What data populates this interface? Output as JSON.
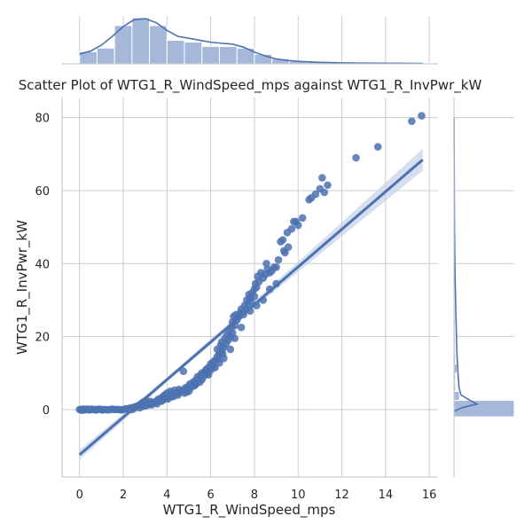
{
  "chart_data": {
    "type": "scatter",
    "title": "Scatter Plot of WTG1_R_WindSpeed_mps against WTG1_R_InvPwr_kW",
    "xlabel": "WTG1_R_WindSpeed_mps",
    "ylabel": "WTG1_R_InvPwr_kW",
    "xlim": [
      -0.8,
      16.4
    ],
    "ylim": [
      -18.5,
      85.5
    ],
    "x_ticks": [
      0,
      2,
      4,
      6,
      8,
      10,
      12,
      14,
      16
    ],
    "y_ticks": [
      0,
      20,
      40,
      60,
      80
    ],
    "grid": true,
    "colors": {
      "points": "#4c72b0",
      "line": "#4c72b0",
      "ci_band": "#c5d1e8",
      "hist_fill": "#a6b8da",
      "grid": "#cccccc",
      "axis": "#cccccc"
    },
    "regression": {
      "slope": 5.15,
      "intercept": -12.4,
      "x_range": [
        0,
        15.7
      ],
      "ci": [
        {
          "x": 0,
          "half_width": 1.3
        },
        {
          "x": 4,
          "half_width": 0.6
        },
        {
          "x": 8,
          "half_width": 0.9
        },
        {
          "x": 12,
          "half_width": 1.9
        },
        {
          "x": 15.7,
          "half_width": 3.0
        }
      ]
    },
    "x_histogram": {
      "bin_edges": [
        0,
        0.8,
        1.6,
        2.4,
        3.2,
        4.0,
        4.8,
        5.6,
        6.4,
        7.2,
        8.0,
        8.8,
        9.6,
        10.4,
        11.2,
        12.0,
        12.8,
        13.6,
        14.4,
        15.2,
        16.0
      ],
      "counts": [
        14,
        18,
        44,
        53,
        44,
        27,
        25,
        20,
        20,
        18,
        11,
        6,
        3,
        2,
        2,
        1,
        1,
        1,
        1,
        1
      ],
      "kde": [
        {
          "x": 0.0,
          "d": 10
        },
        {
          "x": 0.5,
          "d": 13
        },
        {
          "x": 1.0,
          "d": 19
        },
        {
          "x": 1.5,
          "d": 28
        },
        {
          "x": 2.0,
          "d": 38
        },
        {
          "x": 2.5,
          "d": 45
        },
        {
          "x": 3.0,
          "d": 46
        },
        {
          "x": 3.5,
          "d": 42
        },
        {
          "x": 4.0,
          "d": 34
        },
        {
          "x": 4.5,
          "d": 28
        },
        {
          "x": 5.0,
          "d": 26
        },
        {
          "x": 5.5,
          "d": 24
        },
        {
          "x": 6.0,
          "d": 22
        },
        {
          "x": 6.5,
          "d": 21
        },
        {
          "x": 7.0,
          "d": 20
        },
        {
          "x": 7.5,
          "d": 17
        },
        {
          "x": 8.0,
          "d": 12
        },
        {
          "x": 8.5,
          "d": 8
        },
        {
          "x": 9.0,
          "d": 5
        },
        {
          "x": 9.5,
          "d": 3.5
        },
        {
          "x": 10.0,
          "d": 2.5
        },
        {
          "x": 11.0,
          "d": 1.5
        },
        {
          "x": 12.0,
          "d": 1
        },
        {
          "x": 13.0,
          "d": 0.8
        },
        {
          "x": 14.0,
          "d": 0.6
        },
        {
          "x": 15.0,
          "d": 0.5
        },
        {
          "x": 15.7,
          "d": 0.4
        }
      ]
    },
    "y_histogram": {
      "bin_edges": [
        -2,
        2.5,
        5,
        7.5,
        10,
        12.5,
        15,
        17.5,
        20,
        22.5,
        25,
        27.5,
        30,
        32.5,
        35,
        37.5,
        40,
        45,
        50,
        55,
        60,
        65,
        70,
        75,
        80
      ],
      "counts": [
        156,
        14,
        4,
        4,
        8,
        4,
        3,
        3,
        3,
        3,
        2,
        2,
        1,
        1,
        1,
        1,
        1,
        1,
        1,
        1,
        1,
        1,
        1,
        1
      ],
      "kde": [
        {
          "y": -0.5,
          "d": 0
        },
        {
          "y": 0.5,
          "d": 8
        },
        {
          "y": 1.5,
          "d": 23
        },
        {
          "y": 2.5,
          "d": 16
        },
        {
          "y": 4,
          "d": 7
        },
        {
          "y": 6,
          "d": 5
        },
        {
          "y": 10,
          "d": 4
        },
        {
          "y": 15,
          "d": 3
        },
        {
          "y": 20,
          "d": 2.5
        },
        {
          "y": 25,
          "d": 2
        },
        {
          "y": 30,
          "d": 1.6
        },
        {
          "y": 35,
          "d": 1.2
        },
        {
          "y": 40,
          "d": 0.9
        },
        {
          "y": 50,
          "d": 0.5
        },
        {
          "y": 60,
          "d": 0.3
        },
        {
          "y": 70,
          "d": 0.2
        },
        {
          "y": 80,
          "d": 0.1
        }
      ]
    },
    "points": [
      [
        0,
        0
      ],
      [
        0.05,
        0
      ],
      [
        0.1,
        0
      ],
      [
        0.1,
        -0.2
      ],
      [
        0.15,
        0.1
      ],
      [
        0.2,
        0
      ],
      [
        0.2,
        -0.1
      ],
      [
        0.3,
        0
      ],
      [
        0.35,
        0.1
      ],
      [
        0.4,
        0
      ],
      [
        0.45,
        -0.1
      ],
      [
        0.5,
        0
      ],
      [
        0.55,
        0.1
      ],
      [
        0.6,
        0
      ],
      [
        0.7,
        0
      ],
      [
        0.75,
        -0.1
      ],
      [
        0.8,
        0
      ],
      [
        0.9,
        0.1
      ],
      [
        1.0,
        0
      ],
      [
        1.05,
        -0.1
      ],
      [
        1.1,
        0
      ],
      [
        1.2,
        0
      ],
      [
        1.3,
        -0.1
      ],
      [
        1.4,
        0
      ],
      [
        1.5,
        0.1
      ],
      [
        1.6,
        0
      ],
      [
        1.7,
        0
      ],
      [
        1.8,
        0
      ],
      [
        1.9,
        -0.1
      ],
      [
        2.0,
        0
      ],
      [
        2.1,
        0.2
      ],
      [
        2.2,
        0.1
      ],
      [
        2.3,
        0.4
      ],
      [
        2.4,
        0
      ],
      [
        2.45,
        0.6
      ],
      [
        2.5,
        0.3
      ],
      [
        2.6,
        0.9
      ],
      [
        2.7,
        1.1
      ],
      [
        2.75,
        0.5
      ],
      [
        2.8,
        1.5
      ],
      [
        2.85,
        0.8
      ],
      [
        2.9,
        2.0
      ],
      [
        3.0,
        1.8
      ],
      [
        3.0,
        1.0
      ],
      [
        3.05,
        2.5
      ],
      [
        3.1,
        1.2
      ],
      [
        3.2,
        1.5
      ],
      [
        3.25,
        2.2
      ],
      [
        3.3,
        1.3
      ],
      [
        3.4,
        1.8
      ],
      [
        3.45,
        2.0
      ],
      [
        3.5,
        2.2
      ],
      [
        3.55,
        1.6
      ],
      [
        3.6,
        2.5
      ],
      [
        3.7,
        3.0
      ],
      [
        3.75,
        2.3
      ],
      [
        3.8,
        3.5
      ],
      [
        3.85,
        2.8
      ],
      [
        3.9,
        4.0
      ],
      [
        4.0,
        3.2
      ],
      [
        4.0,
        4.5
      ],
      [
        4.05,
        2.9
      ],
      [
        4.1,
        3.8
      ],
      [
        4.15,
        5.0
      ],
      [
        4.2,
        4.2
      ],
      [
        4.3,
        3.6
      ],
      [
        4.35,
        5.3
      ],
      [
        4.4,
        4.5
      ],
      [
        4.5,
        4.0
      ],
      [
        4.55,
        5.5
      ],
      [
        4.6,
        4.8
      ],
      [
        4.7,
        5.2
      ],
      [
        4.75,
        10.5
      ],
      [
        4.8,
        4.5
      ],
      [
        4.85,
        6.0
      ],
      [
        4.9,
        5.5
      ],
      [
        5.0,
        6.3
      ],
      [
        5.0,
        5.0
      ],
      [
        5.05,
        7.0
      ],
      [
        5.1,
        6.0
      ],
      [
        5.2,
        7.5
      ],
      [
        5.25,
        6.5
      ],
      [
        5.3,
        8.0
      ],
      [
        5.35,
        7.2
      ],
      [
        5.4,
        9.0
      ],
      [
        5.5,
        8.5
      ],
      [
        5.5,
        7.5
      ],
      [
        5.55,
        9.5
      ],
      [
        5.6,
        10.0
      ],
      [
        5.7,
        9.2
      ],
      [
        5.75,
        10.5
      ],
      [
        5.8,
        11.0
      ],
      [
        5.85,
        10.0
      ],
      [
        5.9,
        11.5
      ],
      [
        6.0,
        10.8
      ],
      [
        6.0,
        12.5
      ],
      [
        6.05,
        11.5
      ],
      [
        6.1,
        13.0
      ],
      [
        6.15,
        12.0
      ],
      [
        6.2,
        13.5
      ],
      [
        6.3,
        14.5
      ],
      [
        6.3,
        16.5
      ],
      [
        6.35,
        13.8
      ],
      [
        6.4,
        15.5
      ],
      [
        6.45,
        17.5
      ],
      [
        6.5,
        16.0
      ],
      [
        6.5,
        18.5
      ],
      [
        6.55,
        15.2
      ],
      [
        6.6,
        17.0
      ],
      [
        6.65,
        19.5
      ],
      [
        6.7,
        18.0
      ],
      [
        6.75,
        20.5
      ],
      [
        6.8,
        19.0
      ],
      [
        6.85,
        21.5
      ],
      [
        6.9,
        20.0
      ],
      [
        6.95,
        22.5
      ],
      [
        7.0,
        21.0
      ],
      [
        7.0,
        24.0
      ],
      [
        7.05,
        25.5
      ],
      [
        7.1,
        23.0
      ],
      [
        7.15,
        26.0
      ],
      [
        7.2,
        24.5
      ],
      [
        7.3,
        25.5
      ],
      [
        7.35,
        26.5
      ],
      [
        7.4,
        27.5
      ],
      [
        7.5,
        26.0
      ],
      [
        7.55,
        28.5
      ],
      [
        7.6,
        27.5
      ],
      [
        7.65,
        30.0
      ],
      [
        7.7,
        29.0
      ],
      [
        7.75,
        31.5
      ],
      [
        7.8,
        30.5
      ],
      [
        7.85,
        29.5
      ],
      [
        7.9,
        32.0
      ],
      [
        8.0,
        31.0
      ],
      [
        8.0,
        33.0
      ],
      [
        8.05,
        34.5
      ],
      [
        8.1,
        33.5
      ],
      [
        8.15,
        36.5
      ],
      [
        8.2,
        35.0
      ],
      [
        8.3,
        37.5
      ],
      [
        8.4,
        36.0
      ],
      [
        8.5,
        37.0
      ],
      [
        8.55,
        40.0
      ],
      [
        8.6,
        38.5
      ],
      [
        8.7,
        37.5
      ],
      [
        8.8,
        38.0
      ],
      [
        8.9,
        39.0
      ],
      [
        9.0,
        39.0
      ],
      [
        9.1,
        41.0
      ],
      [
        9.2,
        46.0
      ],
      [
        9.3,
        46.5
      ],
      [
        9.35,
        43.5
      ],
      [
        9.4,
        43.0
      ],
      [
        9.5,
        48.5
      ],
      [
        9.55,
        44.5
      ],
      [
        9.7,
        49.5
      ],
      [
        9.8,
        51.5
      ],
      [
        9.9,
        51.5
      ],
      [
        10.0,
        50.5
      ],
      [
        10.2,
        52.5
      ],
      [
        10.5,
        57.5
      ],
      [
        10.6,
        58.0
      ],
      [
        10.8,
        59.0
      ],
      [
        11.0,
        60.5
      ],
      [
        11.1,
        63.5
      ],
      [
        11.2,
        59.5
      ],
      [
        11.35,
        61.5
      ],
      [
        12.65,
        69.0
      ],
      [
        13.65,
        72.0
      ],
      [
        15.2,
        79.0
      ],
      [
        15.65,
        80.5
      ],
      [
        3.3,
        1.7
      ],
      [
        3.6,
        2.8
      ],
      [
        3.8,
        2.6
      ],
      [
        4.2,
        3.5
      ],
      [
        4.5,
        4.6
      ],
      [
        4.9,
        4.8
      ],
      [
        5.3,
        6.8
      ],
      [
        5.6,
        8.2
      ],
      [
        5.9,
        9.5
      ],
      [
        6.2,
        11.5
      ],
      [
        6.4,
        12.8
      ],
      [
        6.6,
        14.0
      ],
      [
        6.9,
        16.5
      ],
      [
        7.1,
        19.5
      ],
      [
        7.4,
        22.5
      ],
      [
        7.8,
        27.0
      ],
      [
        8.1,
        28.5
      ],
      [
        8.4,
        30.0
      ],
      [
        8.7,
        33.0
      ],
      [
        9.0,
        34.5
      ]
    ]
  }
}
